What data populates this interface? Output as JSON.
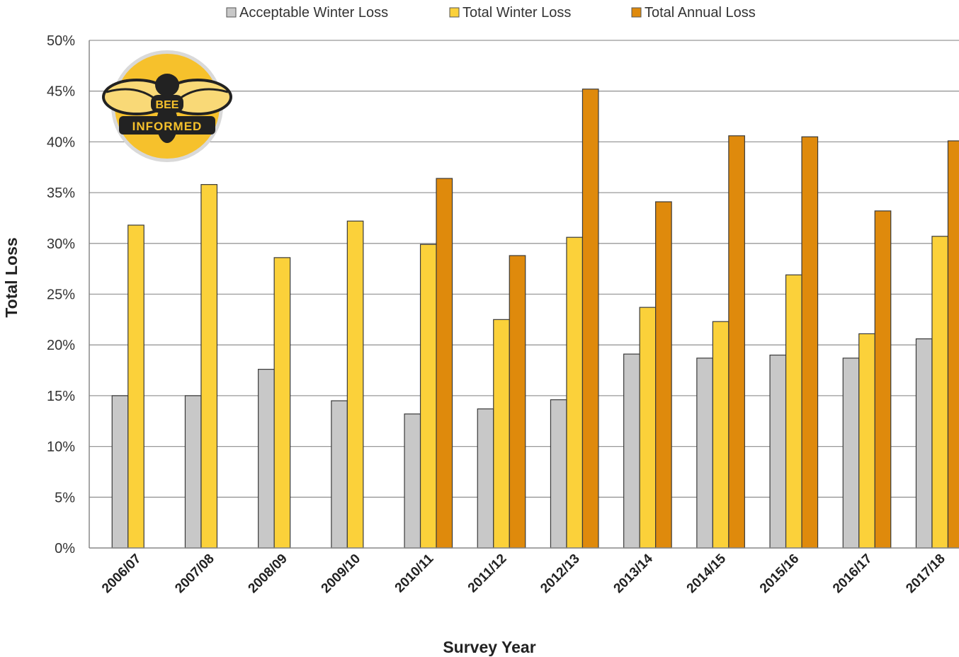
{
  "chart_data": {
    "type": "bar",
    "title": "",
    "xlabel": "Survey Year",
    "ylabel": "Total Loss",
    "ylim": [
      0,
      50
    ],
    "y_ticks": [
      "0%",
      "5%",
      "10%",
      "15%",
      "20%",
      "25%",
      "30%",
      "35%",
      "40%",
      "45%",
      "50%"
    ],
    "grid": true,
    "legend_position": "top",
    "categories": [
      "2006/07",
      "2007/08",
      "2008/09",
      "2009/10",
      "2010/11",
      "2011/12",
      "2012/13",
      "2013/14",
      "2014/15",
      "2015/16",
      "2016/17",
      "2017/18"
    ],
    "series": [
      {
        "name": "Acceptable Winter Loss",
        "color": "#c8c8c8",
        "values": [
          15.0,
          15.0,
          17.6,
          14.5,
          13.2,
          13.7,
          14.6,
          19.1,
          18.7,
          19.0,
          18.7,
          20.6
        ]
      },
      {
        "name": "Total Winter Loss",
        "color": "#fbd13a",
        "values": [
          31.8,
          35.8,
          28.6,
          32.2,
          29.9,
          22.5,
          30.6,
          23.7,
          22.3,
          26.9,
          21.1,
          30.7
        ]
      },
      {
        "name": "Total Annual Loss",
        "color": "#df8a0c",
        "values": [
          null,
          null,
          null,
          null,
          36.4,
          28.8,
          45.2,
          34.1,
          40.6,
          40.5,
          33.2,
          40.1
        ]
      }
    ]
  },
  "logo": {
    "line1": "BEE",
    "line2": "INFORMED"
  }
}
